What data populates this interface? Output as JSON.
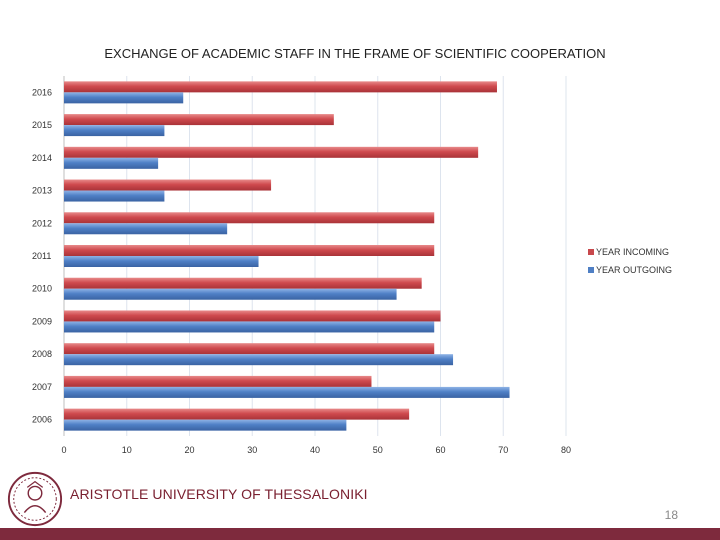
{
  "colors": {
    "incoming": "#c8484c",
    "outgoing": "#4f7fc4",
    "brand": "#7e2a3d",
    "grid": "#dde4ee"
  },
  "footer": {
    "university": "ARISTOTLE UNIVERSITY OF THESSALONIKI",
    "page_number": "18",
    "logo_icon": "university-seal-icon"
  },
  "chart_data": {
    "type": "bar",
    "orientation": "horizontal",
    "title": "EXCHANGE OF ACADEMIC STAFF IN THE FRAME OF SCIENTIFIC COOPERATION",
    "xlabel": "",
    "ylabel": "",
    "categories": [
      "2016",
      "2015",
      "2014",
      "2013",
      "2012",
      "2011",
      "2010",
      "2009",
      "2008",
      "2007",
      "2006"
    ],
    "series": [
      {
        "name": "YEAR INCOMING",
        "values": [
          69,
          43,
          66,
          33,
          59,
          59,
          57,
          60,
          59,
          49,
          55
        ]
      },
      {
        "name": "YEAR OUTGOING",
        "values": [
          19,
          16,
          15,
          16,
          26,
          31,
          53,
          59,
          62,
          71,
          45
        ]
      }
    ],
    "xlim": [
      0,
      80
    ],
    "xticks": [
      "0",
      "10",
      "20",
      "30",
      "40",
      "50",
      "60",
      "70",
      "80"
    ],
    "grid": true,
    "legend_position": "right"
  }
}
